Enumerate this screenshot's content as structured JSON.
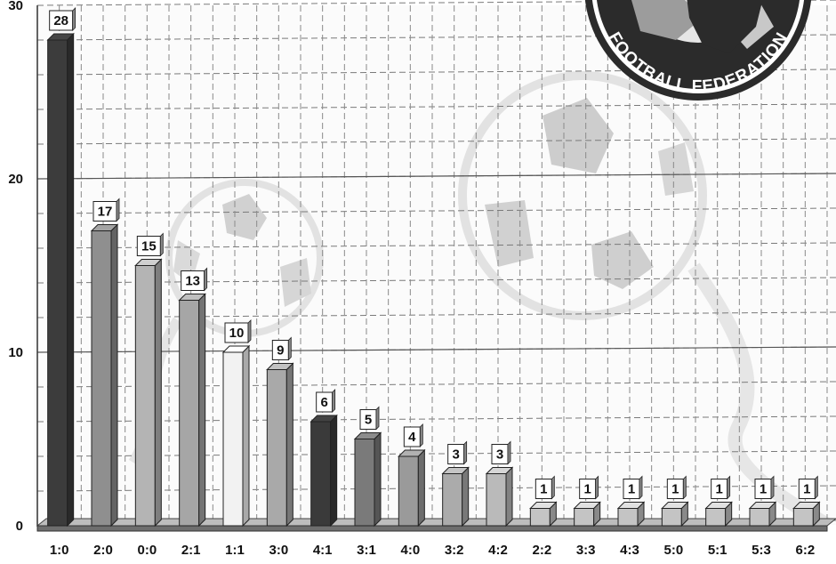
{
  "chart_data": {
    "type": "bar",
    "categories": [
      "1:0",
      "2:0",
      "0:0",
      "2:1",
      "1:1",
      "3:0",
      "4:1",
      "3:1",
      "4:0",
      "3:2",
      "4:2",
      "2:2",
      "3:3",
      "4:3",
      "5:0",
      "5:1",
      "5:3",
      "6:2"
    ],
    "values": [
      28,
      17,
      15,
      13,
      10,
      9,
      6,
      5,
      4,
      3,
      3,
      1,
      1,
      1,
      1,
      1,
      1,
      1
    ],
    "bar_colors": [
      "#3c3c3c",
      "#8f8f8f",
      "#b4b4b4",
      "#a6a6a6",
      "#f2f2f2",
      "#a9a9a9",
      "#3a3a3a",
      "#7a7a7a",
      "#9a9a9a",
      "#ababab",
      "#bababa",
      "#c4c4c4",
      "#c4c4c4",
      "#c4c4c4",
      "#c4c4c4",
      "#c4c4c4",
      "#c4c4c4",
      "#c4c4c4"
    ],
    "yticks": [
      "0",
      "10",
      "20",
      "30"
    ],
    "ylim": [
      0,
      30
    ],
    "grid": true,
    "title": "",
    "xlabel": "",
    "ylabel": ""
  },
  "logo": {
    "text": "FOOTBALL FEDERATION"
  }
}
